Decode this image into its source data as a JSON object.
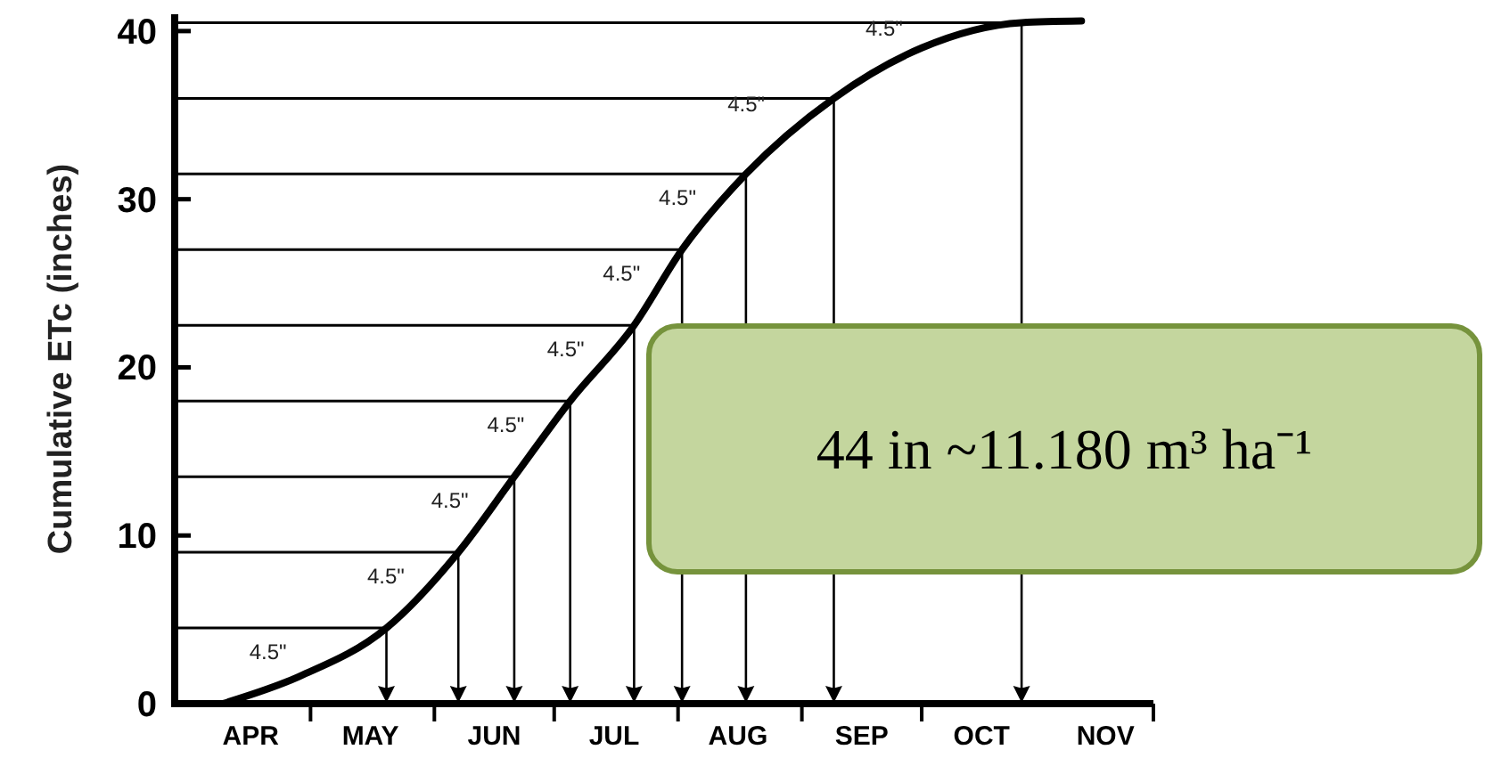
{
  "chart_data": {
    "type": "line",
    "ylabel": "Cumulative ETc (inches)",
    "x": [
      "--04-09",
      "--04-28",
      "--05-20",
      "--06-07",
      "--06-21",
      "--07-05",
      "--07-21",
      "--08-02",
      "--08-18",
      "--09-09",
      "--10-01",
      "--10-26",
      "--11-10"
    ],
    "series": [
      {
        "color": "#000000",
        "values": [
          0,
          1.6,
          4.5,
          9,
          13.5,
          18,
          22.5,
          27,
          31.5,
          36,
          39,
          40.5,
          40.6
        ]
      }
    ],
    "xlim": [
      "--03-28",
      "--11-28"
    ],
    "xticks": [
      {
        "value": "--04-16",
        "label": "APR"
      },
      {
        "value": "--05-01",
        "label": null
      },
      {
        "value": "--05-16",
        "label": "MAY"
      },
      {
        "value": "--06-01",
        "label": null
      },
      {
        "value": "--06-16",
        "label": "JUN"
      },
      {
        "value": "--07-01",
        "label": null
      },
      {
        "value": "--07-16",
        "label": "JUL"
      },
      {
        "value": "--08-01",
        "label": null
      },
      {
        "value": "--08-16",
        "label": "AUG"
      },
      {
        "value": "--09-01",
        "label": null
      },
      {
        "value": "--09-16",
        "label": "SEP"
      },
      {
        "value": "--10-01",
        "label": null
      },
      {
        "value": "--10-16",
        "label": "OCT"
      },
      {
        "value": "--11-16",
        "label": "NOV"
      }
    ],
    "ylim": [
      0,
      41
    ],
    "yticks": [
      0,
      10,
      20,
      30,
      40
    ],
    "grid": false,
    "marker": "none",
    "line_style": "solid",
    "ref_lines": [
      {
        "axis": "y",
        "value": 4.5
      },
      {
        "axis": "y",
        "value": 9
      },
      {
        "axis": "y",
        "value": 13.5
      },
      {
        "axis": "y",
        "value": 18
      },
      {
        "axis": "y",
        "value": 22.5
      },
      {
        "axis": "y",
        "value": 27
      },
      {
        "axis": "y",
        "value": 31.5
      },
      {
        "axis": "y",
        "value": 36
      },
      {
        "axis": "y",
        "value": 40.5
      },
      {
        "axis": "x",
        "value": "--05-20"
      },
      {
        "axis": "x",
        "value": "--06-07"
      },
      {
        "axis": "x",
        "value": "--06-21"
      },
      {
        "axis": "x",
        "value": "--07-05"
      },
      {
        "axis": "x",
        "value": "--07-21"
      },
      {
        "axis": "x",
        "value": "--08-02"
      },
      {
        "axis": "x",
        "value": "--08-18"
      },
      {
        "axis": "x",
        "value": "--09-09"
      },
      {
        "axis": "x",
        "value": "--10-26"
      }
    ],
    "annotations": [
      "4.5\"",
      "4.5\"",
      "4.5\"",
      "4.5\"",
      "4.5\"",
      "4.5\"",
      "4.5\"",
      "4.5\"",
      "4.5\"",
      "44 in ~11.180 m³ ha⁻¹"
    ]
  }
}
